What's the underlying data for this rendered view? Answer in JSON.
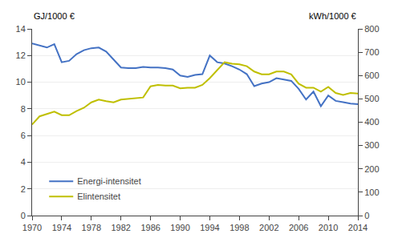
{
  "chart_data": {
    "type": "line",
    "x": [
      1970,
      1971,
      1972,
      1973,
      1974,
      1975,
      1976,
      1977,
      1978,
      1979,
      1980,
      1981,
      1982,
      1983,
      1984,
      1985,
      1986,
      1987,
      1988,
      1989,
      1990,
      1991,
      1992,
      1993,
      1994,
      1995,
      1996,
      1997,
      1998,
      1999,
      2000,
      2001,
      2002,
      2003,
      2004,
      2005,
      2006,
      2007,
      2008,
      2009,
      2010,
      2011,
      2012,
      2013,
      2014
    ],
    "series": [
      {
        "name": "Energi-intensitet",
        "color": "#4472C4",
        "values": [
          12.9,
          12.75,
          12.6,
          12.85,
          11.5,
          11.6,
          12.1,
          12.4,
          12.55,
          12.6,
          12.3,
          11.7,
          11.1,
          11.05,
          11.05,
          11.15,
          11.1,
          11.1,
          11.05,
          10.95,
          10.5,
          10.4,
          10.55,
          10.6,
          12.0,
          11.5,
          11.4,
          11.2,
          10.95,
          10.6,
          9.7,
          9.9,
          10.0,
          10.3,
          10.2,
          10.1,
          9.5,
          8.7,
          9.3,
          8.2,
          9.0,
          8.6,
          8.5,
          8.4,
          8.35
        ]
      },
      {
        "name": "Elintensitet",
        "color": "#BFBF00",
        "axis": "y2",
        "values": [
          390,
          425,
          435,
          445,
          430,
          430,
          448,
          462,
          485,
          497,
          490,
          485,
          497,
          500,
          503,
          506,
          554,
          560,
          557,
          557,
          545,
          548,
          548,
          560,
          589,
          623,
          657,
          651,
          648,
          640,
          617,
          605,
          605,
          617,
          617,
          605,
          565,
          548,
          548,
          531,
          551,
          525,
          517,
          525,
          523
        ]
      }
    ],
    "xlim": [
      1970,
      2014
    ],
    "xticks": [
      1970,
      1974,
      1978,
      1982,
      1986,
      1990,
      1994,
      1998,
      2002,
      2006,
      2010,
      2014
    ],
    "ylim": [
      0,
      14
    ],
    "yticks": [
      0,
      2,
      4,
      6,
      8,
      10,
      12,
      14
    ],
    "y2lim": [
      0,
      800
    ],
    "y2ticks": [
      0,
      100,
      200,
      300,
      400,
      500,
      600,
      700,
      800
    ],
    "ylabel": "GJ/1000 €",
    "y2label": "kWh/1000 €",
    "grid": true,
    "legend": "lower left"
  }
}
